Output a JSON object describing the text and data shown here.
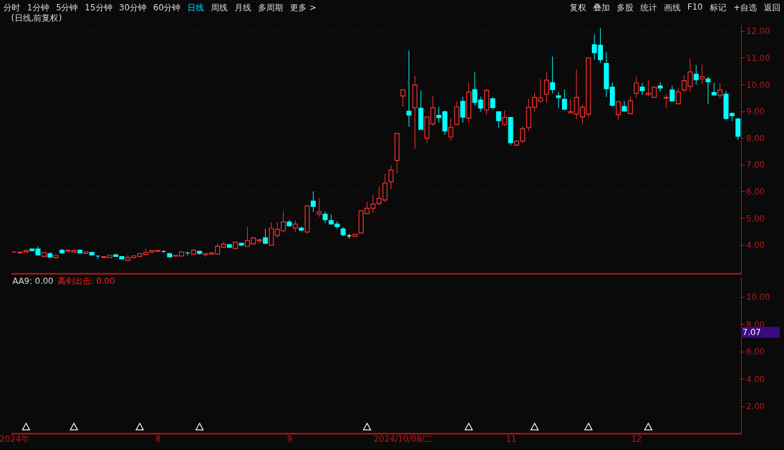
{
  "chart_data": [
    {
      "type": "candlestick",
      "title": "(日线,前复权)",
      "annotations": [
        "分时",
        "1分钟",
        "5分钟",
        "15分钟",
        "30分钟",
        "60分钟",
        "日线",
        "周线",
        "月线",
        "多周期",
        "更多 >",
        "复权",
        "叠加",
        "多股",
        "统计",
        "画线",
        "F10",
        "标记",
        "+自选",
        "返回"
      ],
      "categories": [
        null,
        null,
        null,
        null,
        null,
        null,
        null,
        null,
        null,
        null,
        null,
        null,
        null,
        null,
        null,
        null,
        null,
        null,
        null,
        null,
        null,
        null,
        null,
        null,
        null,
        null,
        null,
        null,
        null,
        null,
        null,
        null,
        null,
        null,
        null,
        null,
        null,
        null,
        null,
        null,
        null,
        null,
        null,
        null,
        null,
        null,
        null,
        null,
        null,
        null,
        null,
        null,
        null,
        null,
        null,
        null,
        null,
        null,
        null,
        null,
        null,
        null,
        null,
        null,
        null,
        null,
        null,
        null,
        null,
        null,
        null,
        null,
        null,
        null,
        null,
        null,
        null,
        null,
        null,
        null,
        null,
        null,
        null,
        null,
        null,
        null,
        null,
        null,
        null,
        null,
        null,
        null,
        null,
        null,
        null,
        null,
        null,
        null,
        null,
        null,
        null,
        null,
        null,
        null,
        null,
        null,
        null,
        null,
        null,
        null,
        null,
        null,
        null,
        null,
        null,
        null,
        null,
        null,
        null,
        null,
        null,
        null
      ],
      "ohlc": [
        [
          3.73,
          3.76,
          3.7,
          3.73
        ],
        [
          3.7,
          3.74,
          3.68,
          3.73
        ],
        [
          3.73,
          3.83,
          3.72,
          3.79
        ],
        [
          3.85,
          3.85,
          3.76,
          3.78
        ],
        [
          3.85,
          3.94,
          3.62,
          3.62
        ],
        [
          3.57,
          3.72,
          3.54,
          3.72
        ],
        [
          3.67,
          3.72,
          3.51,
          3.54
        ],
        [
          3.52,
          3.61,
          3.47,
          3.61
        ],
        [
          3.8,
          3.85,
          3.67,
          3.7
        ],
        [
          3.76,
          3.8,
          3.73,
          3.8
        ],
        [
          3.73,
          3.85,
          3.73,
          3.79
        ],
        [
          3.8,
          3.83,
          3.67,
          3.7
        ],
        [
          3.68,
          3.74,
          3.65,
          3.74
        ],
        [
          3.72,
          3.75,
          3.62,
          3.62
        ],
        [
          3.58,
          3.58,
          3.47,
          3.58
        ],
        [
          3.52,
          3.58,
          3.52,
          3.56
        ],
        [
          3.52,
          3.61,
          3.52,
          3.61
        ],
        [
          3.63,
          3.67,
          3.57,
          3.57
        ],
        [
          3.56,
          3.58,
          3.47,
          3.47
        ],
        [
          3.42,
          3.62,
          3.39,
          3.53
        ],
        [
          3.52,
          3.59,
          3.52,
          3.59
        ],
        [
          3.57,
          3.67,
          3.55,
          3.67
        ],
        [
          3.64,
          3.85,
          3.64,
          3.72
        ],
        [
          3.73,
          3.79,
          3.7,
          3.79
        ],
        [
          3.76,
          3.79,
          3.76,
          3.79
        ],
        [
          3.75,
          3.8,
          3.7,
          3.75
        ],
        [
          3.67,
          3.71,
          3.55,
          3.55
        ],
        [
          3.58,
          3.6,
          3.55,
          3.6
        ],
        [
          3.58,
          3.77,
          3.58,
          3.74
        ],
        [
          3.7,
          3.75,
          3.6,
          3.7
        ],
        [
          3.65,
          3.83,
          3.65,
          3.8
        ],
        [
          3.76,
          3.77,
          3.63,
          3.68
        ],
        [
          3.63,
          3.67,
          3.55,
          3.67
        ],
        [
          3.65,
          3.72,
          3.63,
          3.7
        ],
        [
          3.66,
          4.06,
          3.63,
          3.95
        ],
        [
          3.91,
          4.11,
          3.91,
          4.03
        ],
        [
          4.01,
          4.03,
          3.89,
          3.91
        ],
        [
          3.86,
          4.1,
          3.86,
          4.1
        ],
        [
          4.06,
          4.06,
          3.95,
          3.99
        ],
        [
          3.94,
          4.68,
          3.94,
          4.16
        ],
        [
          4.04,
          4.29,
          3.99,
          4.26
        ],
        [
          4.15,
          4.23,
          4.04,
          4.19
        ],
        [
          4.27,
          4.6,
          4.02,
          4.06
        ],
        [
          3.99,
          4.84,
          3.99,
          4.62
        ],
        [
          4.35,
          4.84,
          4.25,
          4.58
        ],
        [
          4.53,
          5.25,
          4.45,
          4.86
        ],
        [
          4.86,
          4.94,
          4.69,
          4.71
        ],
        [
          4.63,
          4.91,
          4.48,
          4.78
        ],
        [
          4.63,
          4.68,
          4.5,
          4.55
        ],
        [
          4.48,
          5.46,
          4.43,
          5.46
        ],
        [
          5.64,
          6.0,
          5.23,
          5.44
        ],
        [
          5.16,
          5.74,
          5.05,
          5.24
        ],
        [
          5.15,
          5.25,
          4.81,
          4.94
        ],
        [
          4.91,
          5.15,
          4.78,
          4.78
        ],
        [
          4.78,
          4.89,
          4.6,
          4.68
        ],
        [
          4.6,
          4.66,
          4.33,
          4.38
        ],
        [
          4.34,
          4.41,
          4.24,
          4.34
        ],
        [
          4.31,
          4.43,
          4.28,
          4.39
        ],
        [
          4.44,
          5.27,
          4.44,
          5.27
        ],
        [
          5.17,
          5.61,
          5.17,
          5.37
        ],
        [
          5.37,
          5.87,
          5.21,
          5.53
        ],
        [
          5.55,
          6.18,
          5.49,
          5.74
        ],
        [
          5.68,
          6.66,
          5.6,
          6.31
        ],
        [
          6.36,
          6.96,
          6.09,
          6.8
        ],
        [
          7.16,
          8.17,
          6.68,
          8.17
        ],
        [
          9.57,
          9.8,
          9.18,
          9.8
        ],
        [
          9.0,
          11.28,
          8.42,
          8.86
        ],
        [
          9.13,
          10.33,
          7.59,
          9.98
        ],
        [
          9.11,
          9.78,
          8.32,
          8.32
        ],
        [
          7.99,
          8.79,
          7.82,
          8.79
        ],
        [
          8.53,
          9.58,
          8.45,
          9.13
        ],
        [
          8.85,
          9.16,
          8.57,
          8.76
        ],
        [
          8.98,
          9.02,
          8.11,
          8.26
        ],
        [
          8.04,
          8.72,
          7.9,
          8.4
        ],
        [
          8.51,
          9.37,
          8.51,
          9.16
        ],
        [
          9.37,
          9.55,
          8.57,
          8.78
        ],
        [
          8.74,
          10.07,
          8.55,
          9.72
        ],
        [
          9.81,
          10.46,
          9.22,
          9.33
        ],
        [
          9.42,
          9.55,
          8.99,
          9.12
        ],
        [
          9.05,
          9.83,
          8.86,
          9.78
        ],
        [
          9.47,
          9.52,
          9.07,
          9.14
        ],
        [
          8.98,
          8.98,
          8.39,
          8.65
        ],
        [
          8.5,
          9.03,
          8.45,
          8.76
        ],
        [
          8.77,
          8.77,
          7.72,
          7.82
        ],
        [
          7.73,
          7.88,
          7.69,
          7.88
        ],
        [
          7.88,
          8.44,
          7.82,
          8.35
        ],
        [
          8.39,
          9.47,
          8.26,
          9.15
        ],
        [
          9.15,
          9.68,
          8.99,
          9.52
        ],
        [
          9.38,
          10.2,
          9.33,
          9.49
        ],
        [
          9.64,
          10.46,
          9.33,
          10.16
        ],
        [
          10.07,
          11.05,
          9.66,
          9.81
        ],
        [
          9.58,
          9.73,
          9.12,
          9.51
        ],
        [
          9.45,
          9.81,
          9.07,
          9.07
        ],
        [
          8.94,
          9.45,
          8.94,
          8.98
        ],
        [
          8.89,
          10.56,
          8.7,
          9.52
        ],
        [
          8.79,
          9.24,
          8.5,
          9.15
        ],
        [
          8.89,
          10.99,
          8.78,
          10.99
        ],
        [
          11.49,
          11.88,
          10.93,
          11.19
        ],
        [
          11.47,
          12.11,
          10.8,
          10.93
        ],
        [
          10.79,
          11.21,
          9.53,
          9.84
        ],
        [
          9.9,
          10.08,
          9.17,
          9.22
        ],
        [
          8.87,
          9.36,
          8.68,
          9.36
        ],
        [
          9.18,
          9.39,
          8.99,
          9.01
        ],
        [
          8.91,
          9.55,
          8.89,
          9.39
        ],
        [
          9.67,
          10.3,
          9.51,
          10.06
        ],
        [
          9.9,
          10.06,
          9.61,
          9.77
        ],
        [
          9.62,
          10.17,
          9.56,
          9.67
        ],
        [
          9.52,
          9.9,
          9.52,
          9.9
        ],
        [
          9.95,
          10.08,
          9.74,
          9.87
        ],
        [
          9.49,
          9.62,
          9.12,
          9.52
        ],
        [
          9.8,
          9.96,
          9.38,
          9.38
        ],
        [
          9.28,
          9.87,
          9.28,
          9.72
        ],
        [
          9.8,
          10.34,
          9.7,
          10.14
        ],
        [
          9.93,
          10.97,
          9.74,
          10.47
        ],
        [
          10.39,
          10.73,
          10.0,
          10.18
        ],
        [
          10.21,
          10.77,
          10.02,
          10.29
        ],
        [
          10.21,
          10.29,
          9.28,
          10.1
        ],
        [
          9.7,
          10.07,
          9.61,
          9.61
        ],
        [
          9.59,
          10.04,
          9.48,
          9.8
        ],
        [
          9.64,
          9.76,
          8.68,
          8.73
        ],
        [
          8.92,
          8.95,
          8.63,
          8.83
        ],
        [
          8.71,
          8.75,
          7.93,
          8.06
        ]
      ],
      "colors": [
        "#ff3333",
        "#ff3333",
        "#ff3333",
        "#00ffff",
        "#00ffff",
        "#ff3333",
        "#00ffff",
        "#ff3333",
        "#00ffff",
        "#ff3333",
        "#ff3333",
        "#00ffff",
        "#ff3333",
        "#00ffff",
        "#00ffff",
        "#ff3333",
        "#ff3333",
        "#00ffff",
        "#00ffff",
        "#ff3333",
        "#ff3333",
        "#ff3333",
        "#ff3333",
        "#ff3333",
        "#ff3333",
        "#00ffff",
        "#00ffff",
        "#ff3333",
        "#ff3333",
        "#00ffff",
        "#ff3333",
        "#00ffff",
        "#ff3333",
        "#ff3333",
        "#ff3333",
        "#ff3333",
        "#00ffff",
        "#ff3333",
        "#00ffff",
        "#ff3333",
        "#ff3333",
        "#ff3333",
        "#00ffff",
        "#ff3333",
        "#ff3333",
        "#ff3333",
        "#00ffff",
        "#ff3333",
        "#00ffff",
        "#ff3333",
        "#00ffff",
        "#ff3333",
        "#00ffff",
        "#00ffff",
        "#00ffff",
        "#00ffff",
        "#ffffff",
        "#ff3333",
        "#ff3333",
        "#ff3333",
        "#ff3333",
        "#ff3333",
        "#ff3333",
        "#ff3333",
        "#ff3333",
        "#ff3333",
        "#00ffff",
        "#ff3333",
        "#00ffff",
        "#ff3333",
        "#ff3333",
        "#00ffff",
        "#00ffff",
        "#ff3333",
        "#ff3333",
        "#00ffff",
        "#ff3333",
        "#00ffff",
        "#00ffff",
        "#ff3333",
        "#00ffff",
        "#00ffff",
        "#ff3333",
        "#00ffff",
        "#ff3333",
        "#ff3333",
        "#ff3333",
        "#ff3333",
        "#ff3333",
        "#ff3333",
        "#00ffff",
        "#00ffff",
        "#00ffff",
        "#ff3333",
        "#ff3333",
        "#ff3333",
        "#ff3333",
        "#00ffff",
        "#00ffff",
        "#00ffff",
        "#00ffff",
        "#ff3333",
        "#00ffff",
        "#ff3333",
        "#ff3333",
        "#00ffff",
        "#ff3333",
        "#ff3333",
        "#00ffff",
        "#ff3333",
        "#00ffff",
        "#ff3333",
        "#ff3333",
        "#ff3333",
        "#00ffff",
        "#ff3333",
        "#00ffff",
        "#00ffff",
        "#ff3333",
        "#00ffff",
        "#00ffff",
        "#00ffff"
      ],
      "ylim": [
        2.93,
        12.23
      ],
      "yticks": [
        {
          "value": 4,
          "label": "4.00"
        },
        {
          "value": 5,
          "label": "5.00"
        },
        {
          "value": 6,
          "label": "6.00"
        },
        {
          "value": 7,
          "label": "7.00"
        },
        {
          "value": 8,
          "label": "8.00"
        },
        {
          "value": 9,
          "label": "9.00"
        },
        {
          "value": 10,
          "label": "10.00"
        },
        {
          "value": 11,
          "label": "11.00"
        },
        {
          "value": 12,
          "label": "12.00"
        }
      ],
      "grid": "y",
      "tick_labels": "y"
    },
    {
      "type": "scatter",
      "annotations": [
        "AA9: 0.00",
        "高剑出击: 0.00",
        "7.07"
      ],
      "categories": [
        "2024年",
        null,
        null,
        null,
        null,
        null,
        null,
        null,
        null,
        null,
        null,
        null,
        null,
        null,
        null,
        null,
        null,
        null,
        null,
        null,
        null,
        null,
        null,
        null,
        "8",
        null,
        null,
        null,
        null,
        null,
        null,
        null,
        null,
        null,
        null,
        null,
        null,
        null,
        null,
        null,
        null,
        null,
        null,
        null,
        null,
        null,
        "9",
        null,
        null,
        null,
        null,
        null,
        null,
        null,
        null,
        null,
        null,
        null,
        null,
        null,
        null,
        null,
        null,
        null,
        null,
        "2024/10/08/二",
        null,
        null,
        null,
        null,
        null,
        null,
        null,
        null,
        null,
        null,
        null,
        null,
        null,
        null,
        null,
        null,
        null,
        "11",
        null,
        null,
        null,
        null,
        null,
        null,
        null,
        null,
        null,
        null,
        null,
        null,
        null,
        null,
        null,
        null,
        null,
        null,
        null,
        null,
        "12",
        null,
        null,
        null,
        null,
        null,
        null,
        null,
        null,
        null,
        null,
        null,
        null,
        null,
        null,
        null,
        null,
        null
      ],
      "values": [
        null,
        null,
        0.5,
        null,
        null,
        null,
        null,
        null,
        null,
        null,
        0.5,
        null,
        null,
        null,
        null,
        null,
        null,
        null,
        null,
        null,
        null,
        0.5,
        null,
        null,
        null,
        null,
        null,
        null,
        null,
        null,
        null,
        0.5,
        null,
        null,
        null,
        null,
        null,
        null,
        null,
        null,
        null,
        null,
        null,
        null,
        null,
        null,
        null,
        null,
        null,
        null,
        null,
        null,
        null,
        null,
        null,
        null,
        null,
        null,
        null,
        0.5,
        null,
        null,
        null,
        null,
        null,
        null,
        null,
        null,
        null,
        null,
        null,
        null,
        null,
        null,
        null,
        null,
        0.5,
        null,
        null,
        null,
        null,
        null,
        null,
        null,
        null,
        null,
        null,
        0.5,
        null,
        null,
        null,
        null,
        null,
        null,
        null,
        null,
        0.5,
        null,
        null,
        null,
        null,
        null,
        null,
        null,
        null,
        null,
        0.5,
        null,
        null,
        null,
        null,
        null,
        null,
        null,
        null,
        null,
        null,
        null,
        null,
        null,
        null,
        null
      ],
      "color": "#ffffff",
      "marker": "triangle",
      "ylim": [
        0,
        11.45
      ],
      "yticks": [
        {
          "value": 2,
          "label": "2.00"
        },
        {
          "value": 4,
          "label": "4.00"
        },
        {
          "value": 6,
          "label": "6.00"
        },
        {
          "value": 8,
          "label": "8.00"
        },
        {
          "value": 10,
          "label": "10.00"
        }
      ],
      "grid": "y"
    }
  ]
}
